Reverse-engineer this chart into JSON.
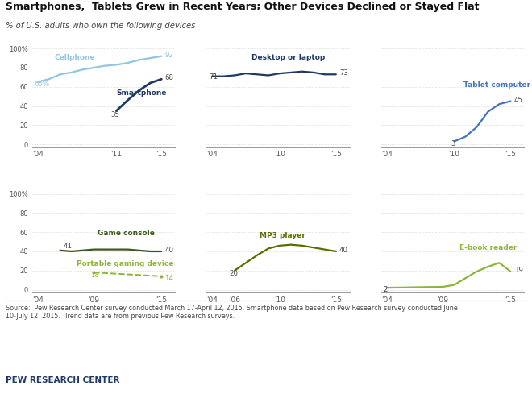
{
  "title": "Smartphones,  Tablets Grew in Recent Years; Other Devices Declined or Stayed Flat",
  "subtitle": "% of U.S. adults who own the following devices",
  "source_text": "Source:  Pew Research Center survey conducted March 17-April 12, 2015. Smartphone data based on Pew Research survey conducted June\n10-July 12, 2015.  Trend data are from previous Pew Research surveys.",
  "footer": "PEW RESEARCH CENTER",
  "cellphone": {
    "years": [
      2004,
      2005,
      2006,
      2007,
      2008,
      2009,
      2010,
      2011,
      2012,
      2013,
      2014,
      2015
    ],
    "values": [
      65,
      68,
      73,
      75,
      78,
      80,
      82,
      83,
      85,
      88,
      90,
      92
    ],
    "color": "#92c5de",
    "label": "Cellphone",
    "start_label": "65%",
    "end_label": "92"
  },
  "smartphone": {
    "years": [
      2011,
      2012,
      2013,
      2014,
      2015
    ],
    "values": [
      35,
      46,
      56,
      64,
      68
    ],
    "color": "#1f3864",
    "label": "Smartphone",
    "start_label": "35",
    "end_label": "68"
  },
  "desktop": {
    "years": [
      2004,
      2005,
      2006,
      2007,
      2008,
      2009,
      2010,
      2011,
      2012,
      2013,
      2014,
      2015
    ],
    "values": [
      71,
      71,
      72,
      74,
      73,
      72,
      74,
      75,
      76,
      75,
      73,
      73
    ],
    "color": "#1f3864",
    "label": "Desktop or laptop",
    "start_label": "71",
    "end_label": "73"
  },
  "tablet": {
    "years": [
      2010,
      2011,
      2012,
      2013,
      2014,
      2015
    ],
    "values": [
      3,
      8,
      18,
      34,
      42,
      45
    ],
    "color": "#4472c4",
    "label": "Tablet computer",
    "start_label": "3",
    "end_label": "45"
  },
  "game_console": {
    "years": [
      2006,
      2007,
      2008,
      2009,
      2010,
      2011,
      2012,
      2013,
      2014,
      2015
    ],
    "values": [
      41,
      40,
      41,
      42,
      42,
      42,
      42,
      41,
      40,
      40
    ],
    "color": "#3d5a1e",
    "label": "Game console",
    "start_label": "41",
    "end_label": "40"
  },
  "portable_gaming": {
    "years": [
      2009,
      2015
    ],
    "values": [
      18,
      14
    ],
    "color": "#8db53c",
    "label": "Portable gaming device",
    "start_label": "18",
    "end_label": "14"
  },
  "mp3": {
    "years": [
      2006,
      2007,
      2008,
      2009,
      2010,
      2011,
      2012,
      2013,
      2014,
      2015
    ],
    "values": [
      20,
      28,
      36,
      43,
      46,
      47,
      46,
      44,
      42,
      40
    ],
    "color": "#5a6e00",
    "label": "MP3 player",
    "start_label": "20",
    "end_label": "40"
  },
  "ebook": {
    "years": [
      2004,
      2009,
      2010,
      2011,
      2012,
      2013,
      2014,
      2015
    ],
    "values": [
      2,
      3,
      5,
      12,
      19,
      24,
      28,
      19
    ],
    "color": "#8db53c",
    "label": "E-book reader",
    "start_label": "2",
    "end_label": "19"
  },
  "background_color": "#ffffff",
  "grid_color": "#c8c8c8",
  "yticks": [
    0,
    20,
    40,
    60,
    80,
    100
  ]
}
